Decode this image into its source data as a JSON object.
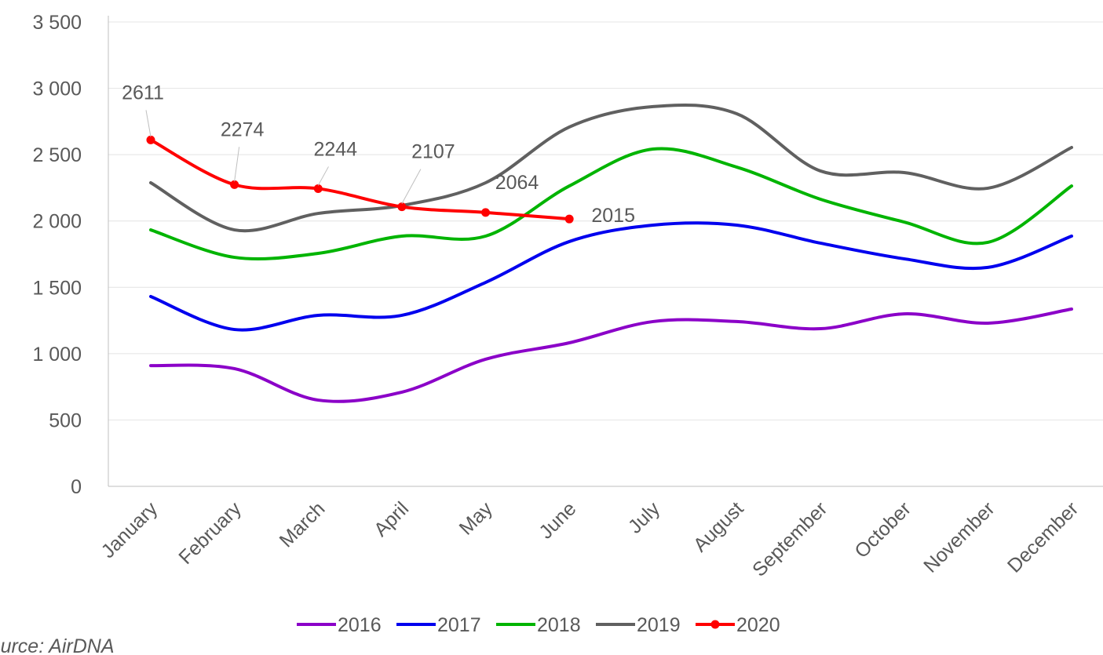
{
  "chart_data": {
    "type": "line",
    "source": "Source: AirDNA",
    "categories": [
      "January",
      "February",
      "March",
      "April",
      "May",
      "June",
      "July",
      "August",
      "September",
      "October",
      "November",
      "December"
    ],
    "series": [
      {
        "name": "2016",
        "color": "#8b00c8",
        "values": [
          910,
          887,
          650,
          710,
          958,
          1082,
          1242,
          1242,
          1188,
          1300,
          1230,
          1336
        ]
      },
      {
        "name": "2017",
        "color": "#0000ee",
        "values": [
          1431,
          1182,
          1289,
          1289,
          1537,
          1845,
          1969,
          1969,
          1833,
          1715,
          1650,
          1886
        ]
      },
      {
        "name": "2018",
        "color": "#00b400",
        "values": [
          1933,
          1726,
          1756,
          1886,
          1886,
          2264,
          2542,
          2406,
          2164,
          1992,
          1839,
          2264
        ]
      },
      {
        "name": "2019",
        "color": "#606060",
        "values": [
          2288,
          1933,
          2057,
          2117,
          2288,
          2708,
          2862,
          2808,
          2377,
          2365,
          2247,
          2554
        ]
      },
      {
        "name": "2020",
        "color": "#ff0000",
        "markers": true,
        "values": [
          2611,
          2274,
          2244,
          2107,
          2064,
          2015,
          null,
          null,
          null,
          null,
          null,
          null
        ]
      }
    ],
    "ylim": [
      0,
      3500
    ],
    "yticks": [
      0,
      500,
      {
        "value": 1000,
        "label": "1 000"
      },
      {
        "value": 1500,
        "label": "1 500"
      },
      {
        "value": 2000,
        "label": "2 000"
      },
      {
        "value": 2500,
        "label": "2 500"
      },
      {
        "value": 3000,
        "label": "3 000"
      },
      {
        "value": 3500,
        "label": "3 500"
      }
    ],
    "grid": true,
    "legend": "bottom"
  }
}
